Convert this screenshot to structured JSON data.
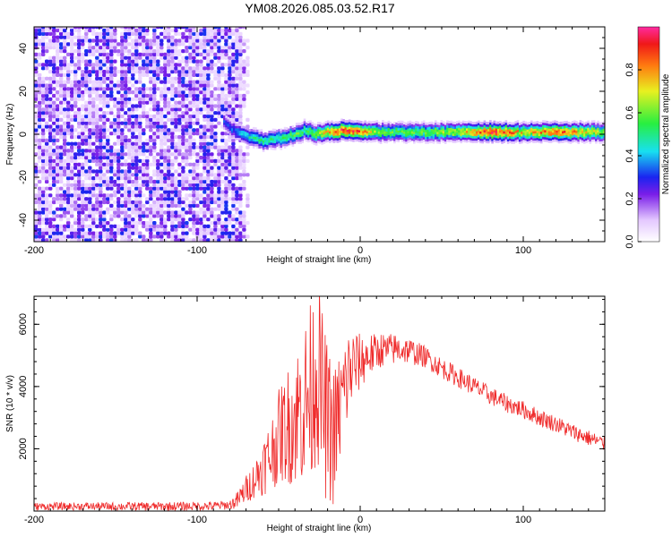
{
  "title": "YM08.2026.085.03.52.R17",
  "chart_data": [
    {
      "type": "heatmap",
      "title": "YM08.2026.085.03.52.R17",
      "xlabel": "Height of straight line (km)",
      "ylabel": "Frequency (Hz)",
      "xlim": [
        -200,
        150
      ],
      "ylim": [
        -50,
        50
      ],
      "xticks": [
        -200,
        -100,
        0,
        100
      ],
      "yticks": [
        -40,
        -20,
        0,
        20,
        40
      ],
      "colorbar": {
        "label": "Normalized spectral amplitude",
        "range": [
          0.0,
          1.0
        ],
        "ticks": [
          0.0,
          0.2,
          0.4,
          0.6,
          0.8
        ]
      },
      "noise_region_x": [
        -200,
        -75
      ],
      "ridge": {
        "x": [
          -84,
          -78,
          -70,
          -60,
          -50,
          -40,
          -34,
          -28,
          -20,
          -10,
          0,
          10,
          20,
          40,
          60,
          80,
          100,
          120,
          150
        ],
        "frequency": [
          6,
          2,
          -1,
          -3,
          -2,
          0,
          2,
          0,
          1,
          2,
          1,
          1,
          1,
          1,
          1,
          1,
          1,
          1,
          1
        ],
        "amplitude": [
          0.3,
          0.35,
          0.45,
          0.5,
          0.5,
          0.55,
          0.55,
          0.6,
          0.75,
          0.9,
          0.8,
          0.6,
          0.55,
          0.6,
          0.65,
          0.9,
          0.7,
          0.85,
          0.6
        ]
      }
    },
    {
      "type": "line",
      "xlabel": "Height of straight line (km)",
      "ylabel": "SNR (10 * v/v)",
      "xlim": [
        -200,
        150
      ],
      "ylim": [
        0,
        6900
      ],
      "xticks": [
        -200,
        -100,
        0,
        100
      ],
      "yticks": [
        2000,
        4000,
        6000
      ],
      "color": "#ef2a2a",
      "series": [
        {
          "name": "SNR",
          "x": [
            -200,
            -180,
            -150,
            -120,
            -90,
            -80,
            -75,
            -70,
            -65,
            -60,
            -55,
            -50,
            -45,
            -40,
            -35,
            -30,
            -27,
            -25,
            -22,
            -20,
            -17,
            -15,
            -12,
            -10,
            -7,
            -5,
            -2,
            0,
            3,
            5,
            8,
            10,
            13,
            15,
            20,
            25,
            30,
            35,
            40,
            50,
            60,
            70,
            80,
            90,
            100,
            110,
            120,
            130,
            140,
            150
          ],
          "y": [
            150,
            150,
            150,
            150,
            160,
            200,
            350,
            700,
            1000,
            1400,
            1800,
            2400,
            2700,
            3000,
            3400,
            3800,
            4600,
            4200,
            3200,
            2800,
            2400,
            2600,
            3400,
            3800,
            4400,
            4600,
            4700,
            4800,
            4900,
            5000,
            5050,
            5100,
            5200,
            5150,
            5200,
            5200,
            5150,
            5050,
            4950,
            4600,
            4300,
            4000,
            3700,
            3450,
            3250,
            3000,
            2800,
            2550,
            2350,
            2150
          ]
        }
      ],
      "noise_amplitude": {
        "x": [
          -200,
          -80,
          -65,
          -50,
          -40,
          -35,
          -30,
          -25,
          -20,
          -15,
          -10,
          0,
          10,
          40,
          80,
          150
        ],
        "y": [
          120,
          150,
          600,
          1500,
          2200,
          2600,
          3000,
          3000,
          2600,
          2200,
          1800,
          900,
          600,
          350,
          300,
          250
        ]
      }
    }
  ]
}
